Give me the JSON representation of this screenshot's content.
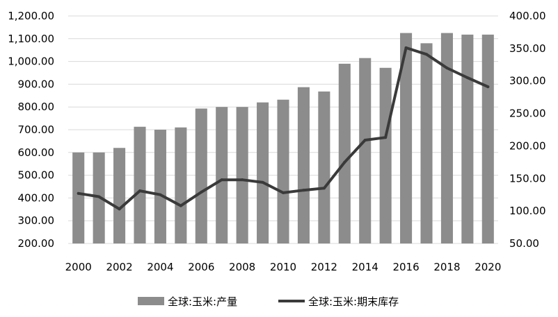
{
  "chart_data": {
    "type": "bar",
    "categories": [
      "2000",
      "2001",
      "2002",
      "2003",
      "2004",
      "2005",
      "2006",
      "2007",
      "2008",
      "2009",
      "2010",
      "2011",
      "2012",
      "2013",
      "2014",
      "2015",
      "2016",
      "2017",
      "2018",
      "2019",
      "2020"
    ],
    "x_tick_labels": [
      "2000",
      "2002",
      "2004",
      "2006",
      "2008",
      "2010",
      "2012",
      "2014",
      "2016",
      "2018",
      "2020"
    ],
    "series": [
      {
        "name": "全球:玉米:产量",
        "type": "bar",
        "axis": "left",
        "color": "#8c8c8c",
        "values": [
          600,
          600,
          620,
          713,
          700,
          710,
          793,
          800,
          800,
          820,
          832,
          887,
          868,
          990,
          1015,
          972,
          1125,
          1080,
          1125,
          1118,
          1118
        ]
      },
      {
        "name": "全球:玉米:期末库存",
        "type": "line",
        "axis": "right",
        "color": "#3a3a3a",
        "values": [
          127,
          122,
          103,
          131,
          125,
          108,
          129,
          148,
          148,
          144,
          128,
          132,
          135,
          175,
          209,
          213,
          351,
          341,
          320,
          305,
          291
        ]
      }
    ],
    "y_left": {
      "ylim": [
        200,
        1200
      ],
      "ticks": [
        "200.00",
        "300.00",
        "400.00",
        "500.00",
        "600.00",
        "700.00",
        "800.00",
        "900.00",
        "1,000.00",
        "1,100.00",
        "1,200.00"
      ]
    },
    "y_right": {
      "ylim": [
        50,
        400
      ],
      "ticks": [
        "50.00",
        "100.00",
        "150.00",
        "200.00",
        "250.00",
        "300.00",
        "350.00",
        "400.00"
      ]
    },
    "grid": true,
    "legend_position": "bottom-center"
  }
}
